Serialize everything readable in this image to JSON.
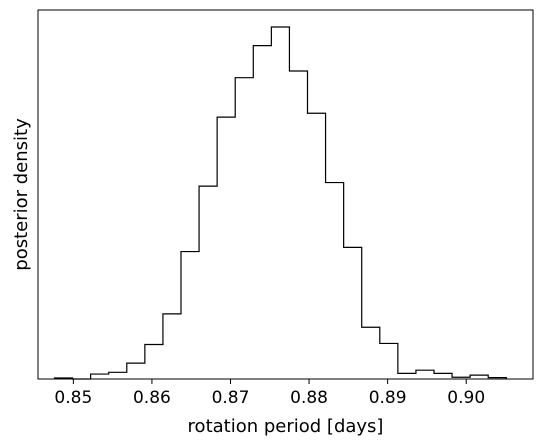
{
  "chart_data": {
    "type": "histogram",
    "xlabel": "rotation period [days]",
    "ylabel": "posterior density",
    "xlim": [
      0.8455,
      0.9085
    ],
    "ylim": [
      0,
      1.0
    ],
    "x_ticks": [
      0.85,
      0.86,
      0.87,
      0.88,
      0.89,
      0.9
    ],
    "x_tick_labels": [
      "0.85",
      "0.86",
      "0.87",
      "0.88",
      "0.89",
      "0.90"
    ],
    "y_ticks_visible": false,
    "grid": false,
    "bin_edges": [
      0.8476,
      0.8499,
      0.8522,
      0.8545,
      0.8568,
      0.8591,
      0.8614,
      0.8637,
      0.866,
      0.8683,
      0.8706,
      0.8729,
      0.8752,
      0.8775,
      0.8798,
      0.8821,
      0.8844,
      0.8867,
      0.889,
      0.8913,
      0.8936,
      0.8959,
      0.8982,
      0.9005,
      0.9028,
      0.9051
    ],
    "values": [
      0.003,
      0.0,
      0.014,
      0.019,
      0.045,
      0.098,
      0.185,
      0.362,
      0.548,
      0.744,
      0.856,
      0.947,
      1.0,
      0.875,
      0.755,
      0.558,
      0.374,
      0.147,
      0.101,
      0.016,
      0.025,
      0.016,
      0.005,
      0.011,
      0.004
    ],
    "line_color": "#000000"
  }
}
